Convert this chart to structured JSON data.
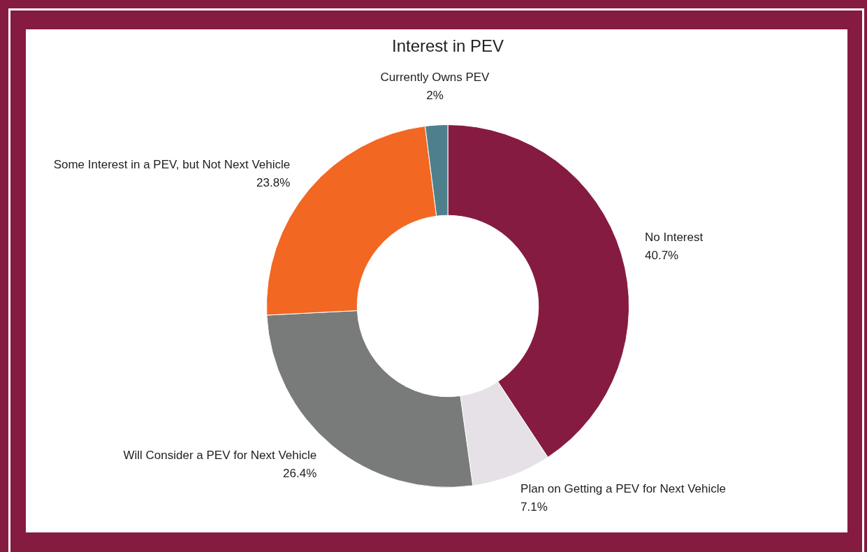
{
  "chart_data": {
    "type": "donut",
    "title": "Interest in PEV",
    "categories": [
      "No Interest",
      "Plan on Getting a PEV for Next Vehicle",
      "Will Consider a PEV for Next Vehicle",
      "Some Interest in a PEV, but Not Next Vehicle",
      "Currently Owns PEV"
    ],
    "values": [
      40.7,
      7.1,
      26.4,
      23.8,
      2
    ],
    "value_labels": [
      "40.7%",
      "7.1%",
      "26.4%",
      "23.8%",
      "2%"
    ],
    "colors": [
      "#861b41",
      "#e6e1e6",
      "#797b7b",
      "#f26722",
      "#4e808c"
    ],
    "legend": false
  }
}
